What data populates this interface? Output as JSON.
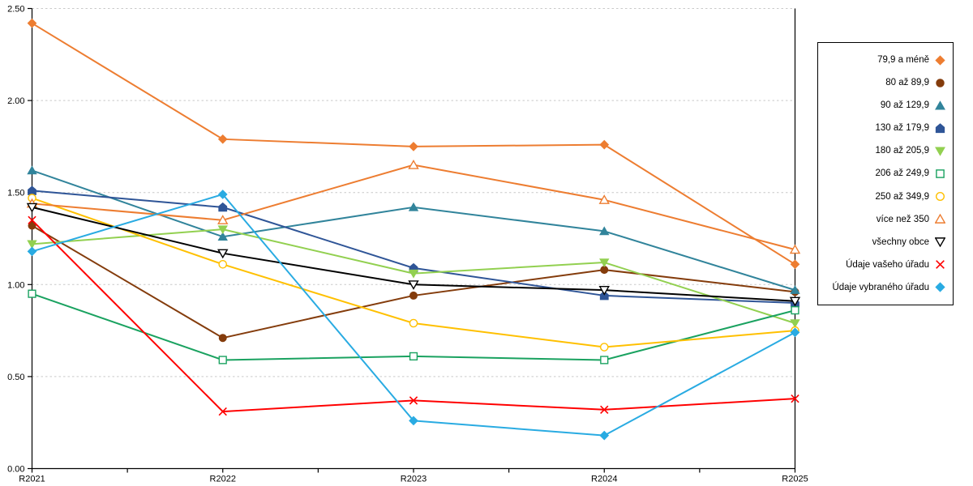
{
  "chart_data": {
    "type": "line",
    "title": "",
    "xlabel": "",
    "ylabel": "",
    "x": [
      "R2021",
      "R2022",
      "R2023",
      "R2024",
      "R2025"
    ],
    "ylim": [
      0,
      2.5
    ],
    "ytick_step": 0.5,
    "ytick_labels": [
      "0.00",
      "0.50",
      "1.00",
      "1.50",
      "2.00",
      "2.50"
    ],
    "grid": "horizontal-dashed",
    "grid_color": "#c9c9c9",
    "axis_color": "#000000",
    "legend_position": "right",
    "series": [
      {
        "name": "79,9 a méně",
        "marker": "diamond",
        "fill": "filled",
        "color": "#ED7D31",
        "values": [
          2.42,
          1.79,
          1.75,
          1.76,
          1.11
        ]
      },
      {
        "name": "80 až 89,9",
        "marker": "circle",
        "fill": "filled",
        "color": "#843C0C",
        "values": [
          1.32,
          0.71,
          0.94,
          1.08,
          0.96
        ]
      },
      {
        "name": "90 až 129,9",
        "marker": "triangle-up",
        "fill": "filled",
        "color": "#31849B",
        "values": [
          1.62,
          1.26,
          1.42,
          1.29,
          0.97
        ]
      },
      {
        "name": "130 až 179,9",
        "marker": "pentagon",
        "fill": "filled",
        "color": "#2F5597",
        "values": [
          1.51,
          1.42,
          1.09,
          0.94,
          0.9
        ]
      },
      {
        "name": "180 až 205,9",
        "marker": "triangle-down",
        "fill": "filled",
        "color": "#92D050",
        "values": [
          1.22,
          1.3,
          1.06,
          1.12,
          0.79
        ]
      },
      {
        "name": "206 až 249,9",
        "marker": "square",
        "fill": "open",
        "color": "#1AA260",
        "values": [
          0.95,
          0.59,
          0.61,
          0.59,
          0.86
        ]
      },
      {
        "name": "250 až 349,9",
        "marker": "circle",
        "fill": "open",
        "color": "#FFC000",
        "values": [
          1.47,
          1.11,
          0.79,
          0.66,
          0.75
        ]
      },
      {
        "name": "více než 350",
        "marker": "triangle-up",
        "fill": "open",
        "color": "#ED7D31",
        "values": [
          1.44,
          1.35,
          1.65,
          1.46,
          1.19
        ]
      },
      {
        "name": "všechny obce",
        "marker": "triangle-down",
        "fill": "open",
        "color": "#000000",
        "values": [
          1.42,
          1.17,
          1.0,
          0.97,
          0.91
        ]
      },
      {
        "name": "Údaje vašeho úřadu",
        "marker": "x",
        "fill": "open",
        "color": "#FF0000",
        "values": [
          1.35,
          0.31,
          0.37,
          0.32,
          0.38
        ]
      },
      {
        "name": "Údaje vybraného úřadu",
        "marker": "diamond",
        "fill": "filled",
        "color": "#29ABE2",
        "values": [
          1.18,
          1.49,
          0.26,
          0.18,
          0.74
        ]
      }
    ]
  }
}
